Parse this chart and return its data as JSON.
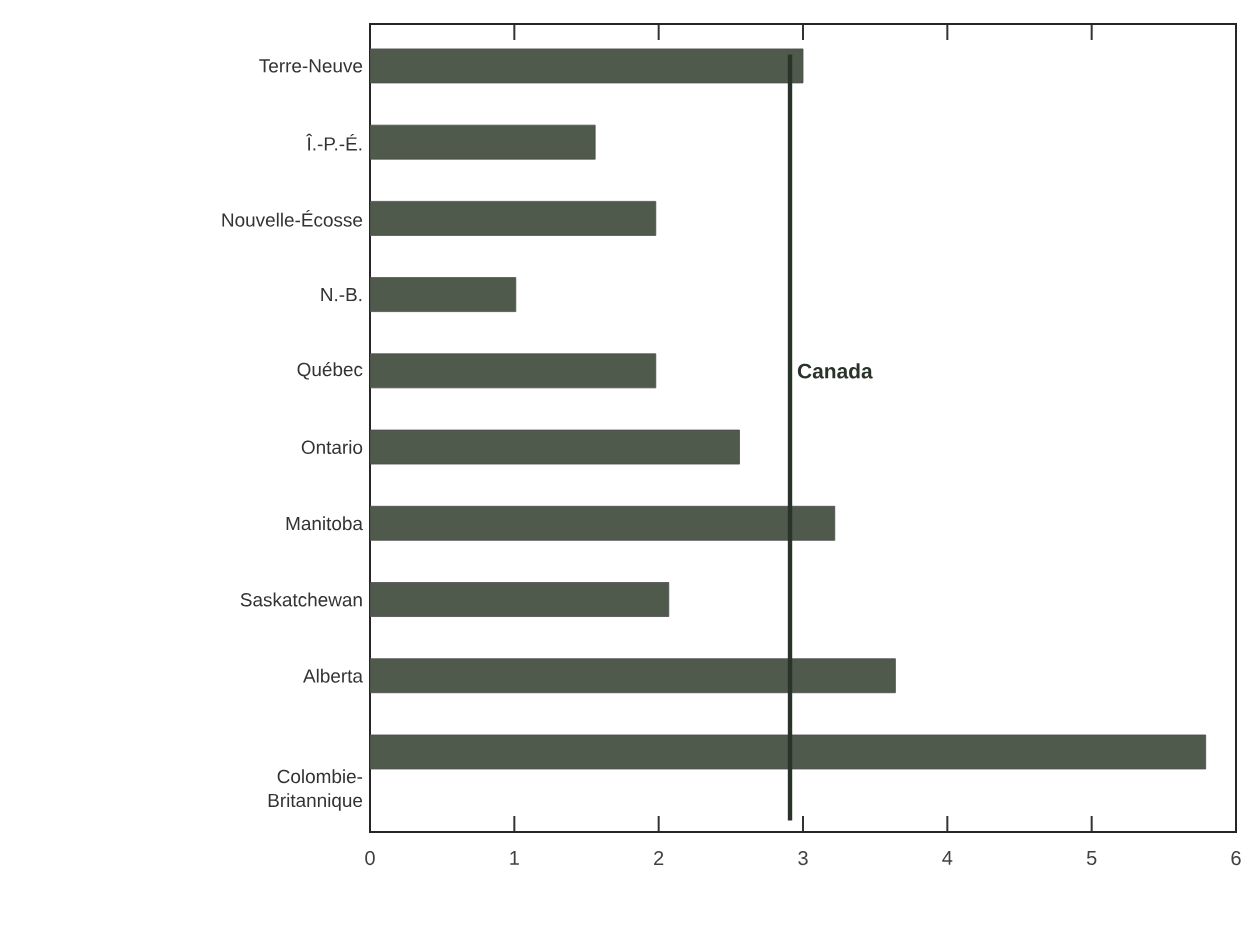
{
  "chart_data": {
    "type": "bar",
    "orientation": "horizontal",
    "categories": [
      "Terre-Neuve",
      "Î.-P.-É.",
      "Nouvelle-Écosse",
      "N.-B.",
      "Québec",
      "Ontario",
      "Manitoba",
      "Saskatchewan",
      "Alberta",
      "Colombie-Britannique"
    ],
    "values": [
      3.0,
      1.56,
      1.98,
      1.01,
      1.98,
      2.56,
      3.22,
      2.07,
      3.64,
      5.79
    ],
    "color": "#4f5a4c",
    "xlim": [
      0,
      6
    ],
    "xticks": [
      0,
      1,
      2,
      3,
      4,
      5,
      6
    ],
    "ref_lines": [
      {
        "axis": "x",
        "value": 2.91,
        "label": "Canada",
        "color": "#2a332a"
      }
    ],
    "grid": false
  }
}
